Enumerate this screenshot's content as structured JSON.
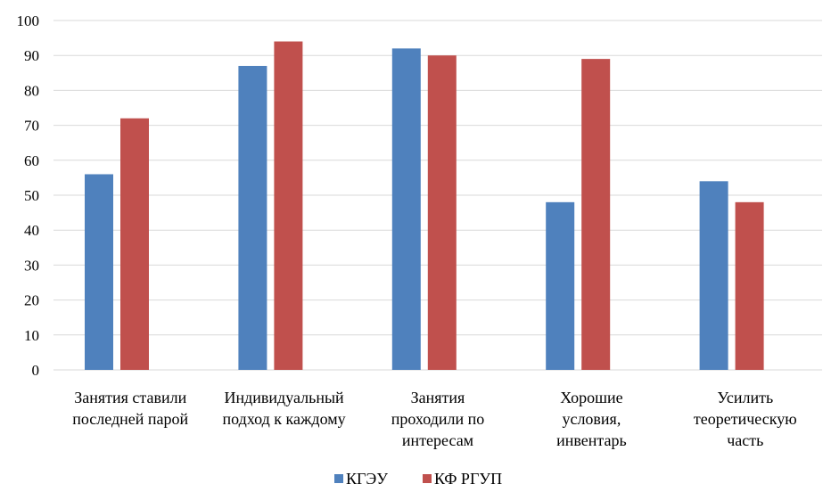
{
  "chart_data": {
    "type": "bar",
    "title": "",
    "xlabel": "",
    "ylabel": "",
    "ylim": [
      0,
      100
    ],
    "yticks": [
      0,
      10,
      20,
      30,
      40,
      50,
      60,
      70,
      80,
      90,
      100
    ],
    "grid": true,
    "legend_position": "bottom",
    "categories": [
      [
        "Занятия ставили",
        "последней парой"
      ],
      [
        "Индивидуальный",
        "подход к каждому"
      ],
      [
        "Занятия",
        "проходили по",
        "интересам"
      ],
      [
        "Хорошие",
        "условия,",
        "инвентарь"
      ],
      [
        "Усилить",
        "теоретическую",
        "часть"
      ]
    ],
    "series": [
      {
        "name": "КГЭУ",
        "color": "#4f81bd",
        "values": [
          56,
          87,
          92,
          48,
          54
        ]
      },
      {
        "name": "КФ РГУП",
        "color": "#c0504d",
        "values": [
          72,
          94,
          90,
          89,
          48
        ]
      }
    ]
  }
}
